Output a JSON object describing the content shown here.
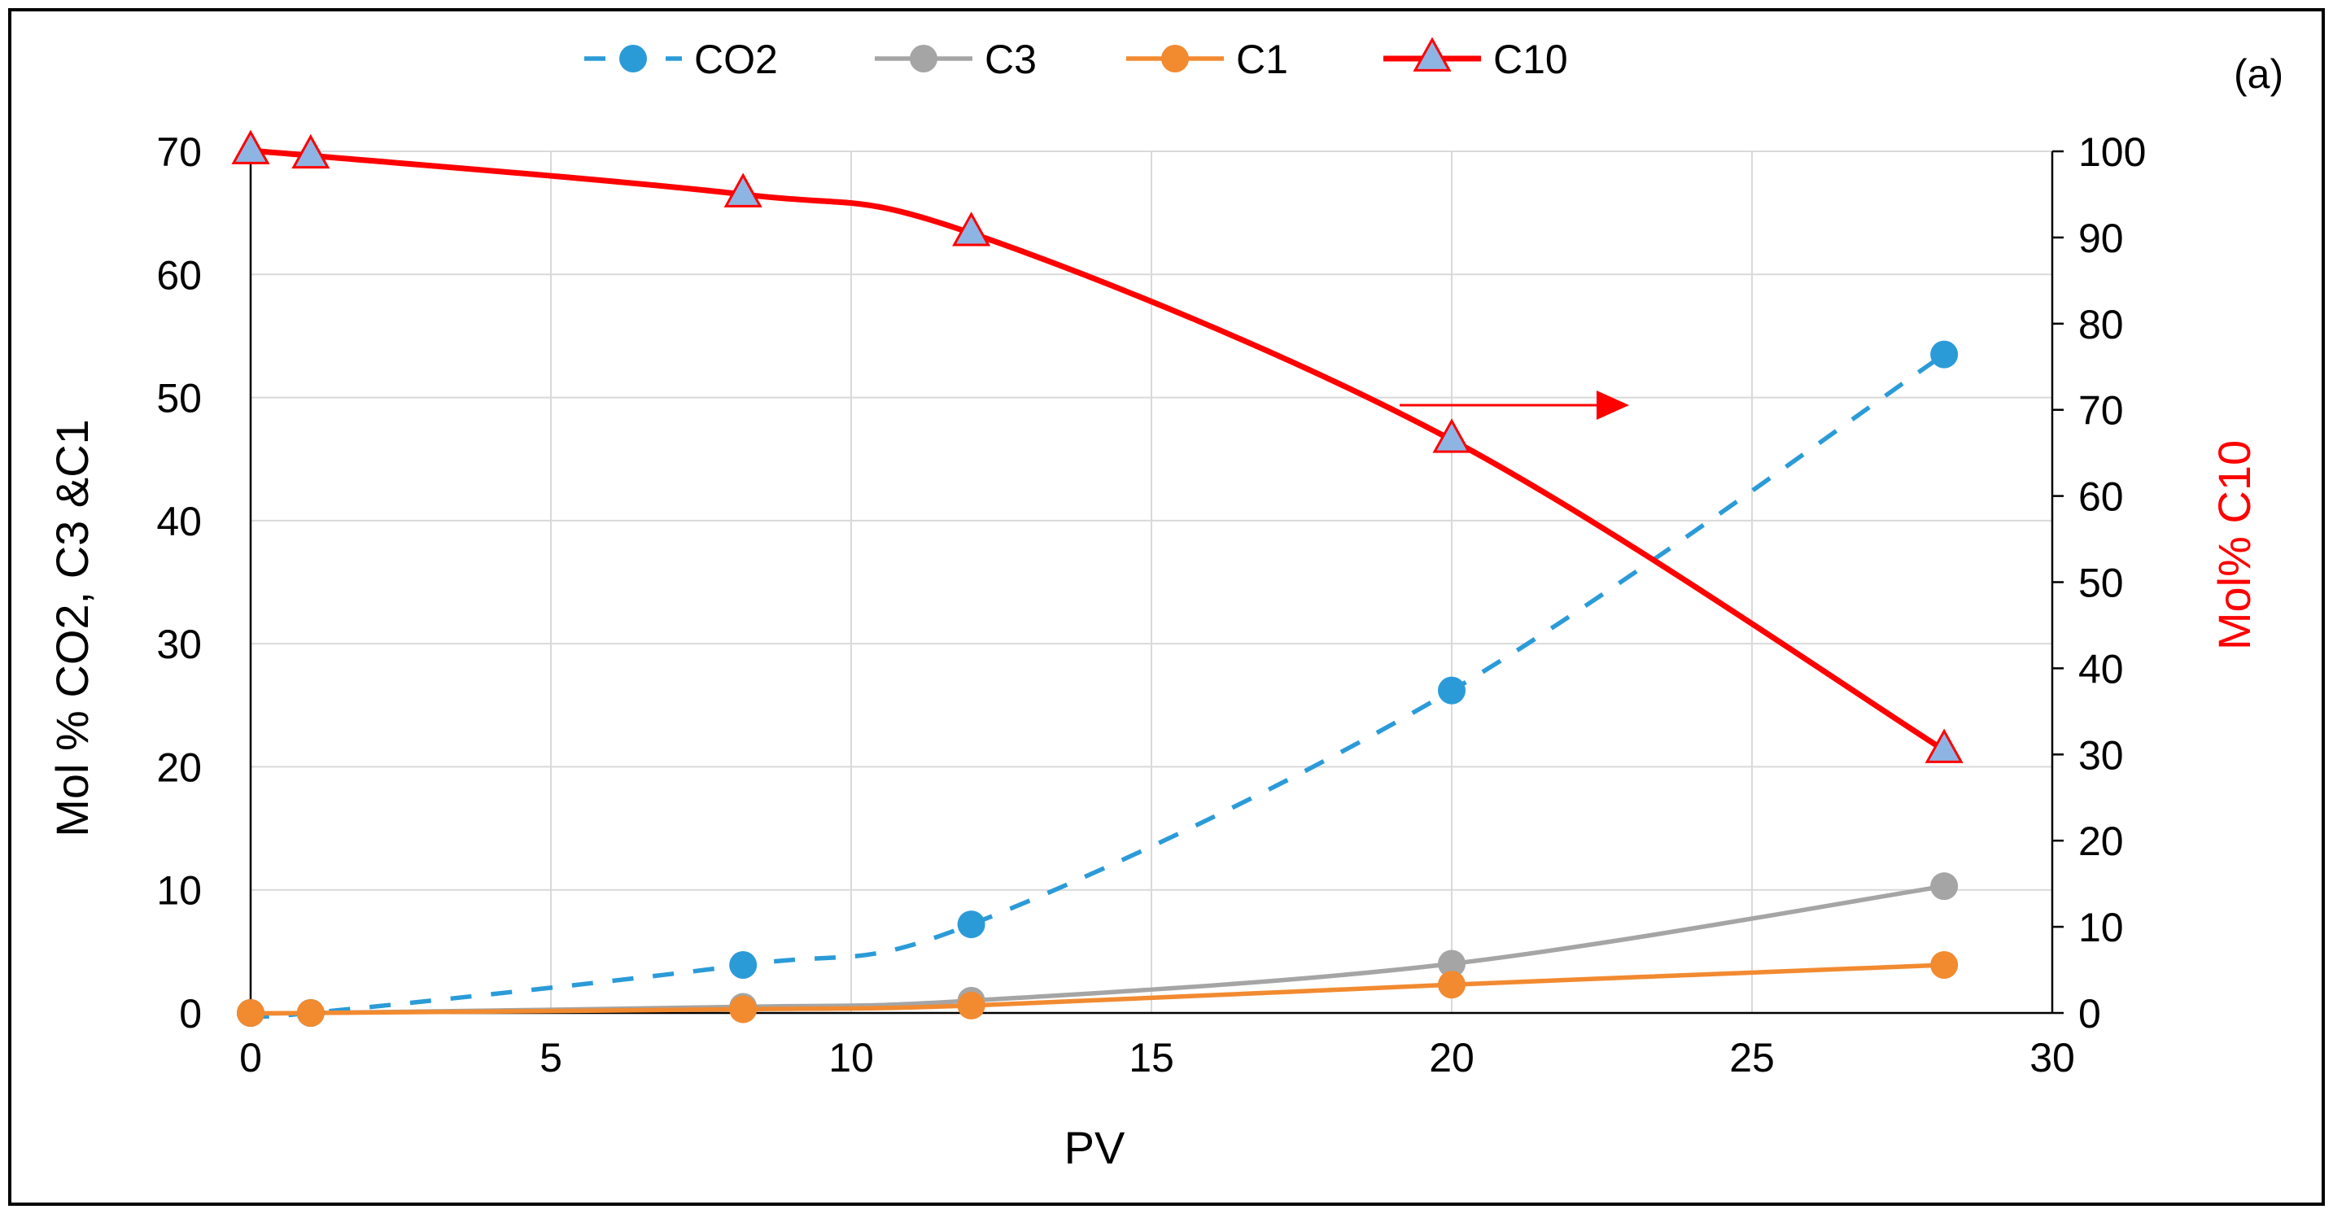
{
  "chart_data": {
    "type": "line",
    "panel_label": "(a)",
    "title": "",
    "xlabel": "PV",
    "ylabel_left": "Mol %  CO2, C3 &C1",
    "ylabel_right": "Mol% C10",
    "xlim": [
      0,
      30
    ],
    "ylim_left": [
      0,
      70
    ],
    "ylim_right": [
      0,
      100
    ],
    "x_ticks": [
      "0",
      "5",
      "10",
      "15",
      "20",
      "25",
      "30"
    ],
    "y_left_ticks": [
      "0",
      "10",
      "20",
      "30",
      "40",
      "50",
      "60",
      "70"
    ],
    "y_right_ticks": [
      "0",
      "10",
      "20",
      "30",
      "40",
      "50",
      "60",
      "70",
      "80",
      "90",
      "100"
    ],
    "grid": true,
    "legend_position": "top",
    "annotation": "arrow pointing right indicating C10 uses right axis",
    "series": [
      {
        "name": "CO2",
        "axis": "left",
        "color": "#2b9bd8",
        "line_style": "dashed",
        "marker": "circle",
        "x": [
          0,
          1,
          8.2,
          12,
          20,
          28.2
        ],
        "values": [
          0,
          0,
          3.9,
          7.2,
          26.2,
          53.5
        ]
      },
      {
        "name": "C3",
        "axis": "left",
        "color": "#a5a5a5",
        "line_style": "solid",
        "marker": "circle",
        "x": [
          0,
          1,
          8.2,
          12,
          20,
          28.2
        ],
        "values": [
          0,
          0,
          0.5,
          1.0,
          4.0,
          10.3
        ]
      },
      {
        "name": "C1",
        "axis": "left",
        "color": "#f28a30",
        "line_style": "solid",
        "marker": "circle",
        "x": [
          0,
          1,
          8.2,
          12,
          20,
          28.2
        ],
        "values": [
          0,
          0,
          0.3,
          0.6,
          2.3,
          3.9
        ]
      },
      {
        "name": "C10",
        "axis": "right",
        "color": "#ff0000",
        "marker_fill": "#8eb4e3",
        "line_style": "solid",
        "marker": "triangle",
        "x": [
          0,
          1,
          8.2,
          12,
          20,
          28.2
        ],
        "values": [
          100,
          99.5,
          95,
          90.5,
          66.5,
          30.5
        ]
      }
    ]
  }
}
